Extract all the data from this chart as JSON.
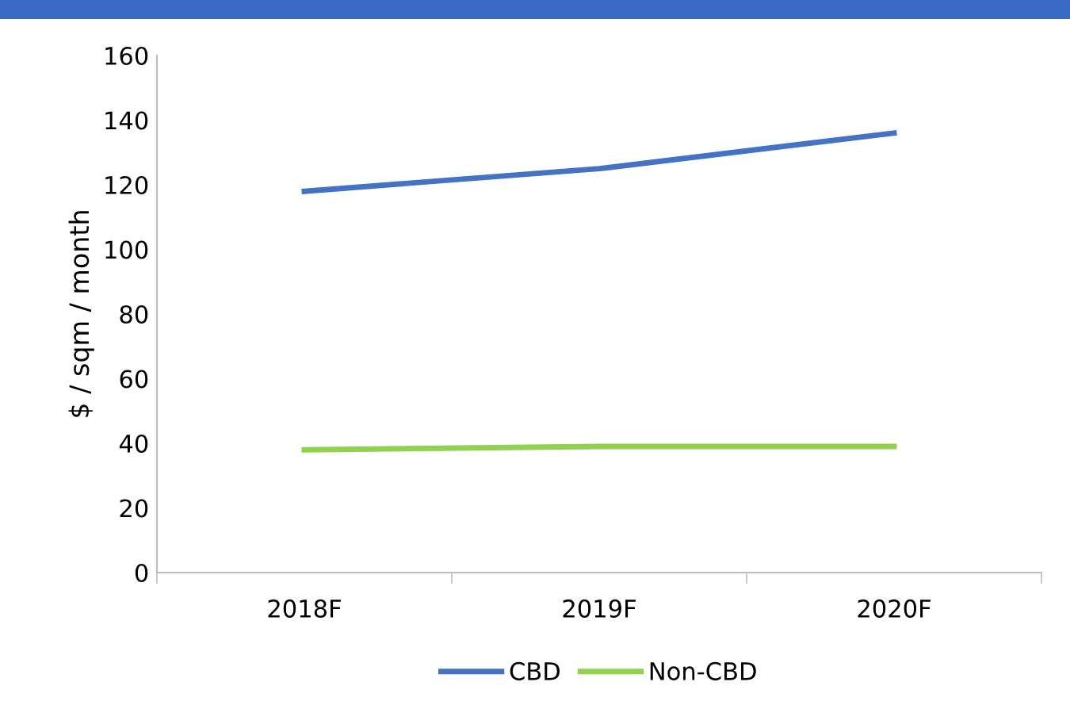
{
  "chart_data": {
    "type": "line",
    "ylabel": "$ / sqm / month",
    "categories": [
      "2018F",
      "2019F",
      "2020F"
    ],
    "series": [
      {
        "name": "CBD",
        "color": "#4472c4",
        "values": [
          118,
          125,
          136
        ]
      },
      {
        "name": "Non-CBD",
        "color": "#92d050",
        "values": [
          38,
          39,
          39
        ]
      }
    ],
    "ylim": [
      0,
      160
    ],
    "yticks": [
      0,
      20,
      40,
      60,
      80,
      100,
      120,
      140,
      160
    ],
    "grid": false,
    "legend": "bottom",
    "marker": "none",
    "line_style": "solid"
  }
}
